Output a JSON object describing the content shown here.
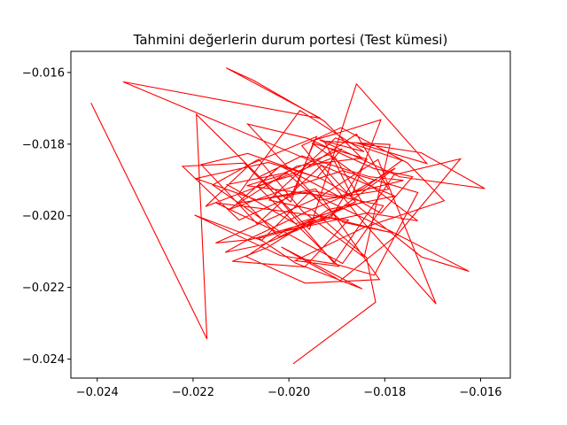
{
  "chart_data": {
    "type": "line",
    "title": "Tahmini değerlerin durum portesi (Test kümesi)",
    "xlabel": "",
    "ylabel": "",
    "xlim": [
      -0.02455,
      -0.01538
    ],
    "ylim": [
      -0.02453,
      -0.01541
    ],
    "xticks": [
      -0.024,
      -0.022,
      -0.02,
      -0.018,
      -0.016
    ],
    "xtick_labels": [
      "−0.024",
      "−0.022",
      "−0.020",
      "−0.018",
      "−0.016"
    ],
    "yticks": [
      -0.024,
      -0.022,
      -0.02,
      -0.018,
      -0.016
    ],
    "ytick_labels": [
      "−0.024",
      "−0.022",
      "−0.020",
      "−0.018",
      "−0.016"
    ],
    "grid": false,
    "line_color": "#ff0000",
    "series": [
      {
        "x": [
          -0.02413,
          -0.02171,
          -0.02193,
          -0.02051,
          -0.01996,
          -0.01947,
          -0.01808,
          -0.01869,
          -0.01926,
          -0.01789,
          -0.01843,
          -0.01972,
          -0.02063,
          -0.02159,
          -0.02017,
          -0.01861,
          -0.01932,
          -0.02066,
          -0.02183,
          -0.02086,
          -0.01941,
          -0.01889,
          -0.02013,
          -0.02129,
          -0.01986,
          -0.01847,
          -0.01904,
          -0.02046,
          -0.02174,
          -0.02081,
          -0.01942,
          -0.01995,
          -0.02104,
          -0.02222,
          -0.02093,
          -0.01957,
          -0.01859,
          -0.01712,
          -0.01858,
          -0.01724,
          -0.01591,
          -0.01769,
          -0.01936,
          -0.01843,
          -0.01977,
          -0.02106,
          -0.02021,
          -0.01863,
          -0.01723,
          -0.01624,
          -0.01786,
          -0.01957,
          -0.02057,
          -0.02197,
          -0.02018,
          -0.01902,
          -0.01822,
          -0.01731,
          -0.01888,
          -0.02014,
          -0.02126,
          -0.01983,
          -0.01848,
          -0.01927,
          -0.02074,
          -0.02131,
          -0.01934,
          -0.02346,
          -0.01779,
          -0.01916,
          -0.02046,
          -0.02118,
          -0.01967,
          -0.01876,
          -0.02043,
          -0.02152,
          -0.02022,
          -0.01836,
          -0.01731,
          -0.01874,
          -0.01952,
          -0.01837,
          -0.01913,
          -0.02063,
          -0.01986,
          -0.01847,
          -0.02016,
          -0.01893,
          -0.01773,
          -0.01642,
          -0.01781,
          -0.01906,
          -0.02061,
          -0.01973,
          -0.01832,
          -0.01761,
          -0.01905,
          -0.02088,
          -0.02003,
          -0.01887,
          -0.01783,
          -0.01921,
          -0.02079,
          -0.02153,
          -0.01934,
          -0.01814,
          -0.01693,
          -0.01846,
          -0.01973,
          -0.01891,
          -0.01753,
          -0.01676,
          -0.01842,
          -0.01987,
          -0.01896,
          -0.02066,
          -0.01982,
          -0.01859,
          -0.01792,
          -0.01938,
          -0.02086,
          -0.01961,
          -0.01823,
          -0.01742,
          -0.01808,
          -0.01933,
          -0.02043,
          -0.02194,
          -0.02067,
          -0.01944,
          -0.01811,
          -0.01966,
          -0.02089,
          -0.02011,
          -0.01888,
          -0.01803,
          -0.01947,
          -0.02108,
          -0.02018,
          -0.01888,
          -0.01778,
          -0.01916,
          -0.02058,
          -0.02133,
          -0.02082,
          -0.01952,
          -0.01843,
          -0.01764,
          -0.01903,
          -0.02041,
          -0.01952,
          -0.01838,
          -0.01819,
          -0.01991
        ],
        "y": [
          -0.01685,
          -0.02344,
          -0.01717,
          -0.01905,
          -0.01961,
          -0.01789,
          -0.01732,
          -0.01943,
          -0.01792,
          -0.01801,
          -0.02116,
          -0.01987,
          -0.01842,
          -0.01914,
          -0.02046,
          -0.01961,
          -0.01859,
          -0.02023,
          -0.01857,
          -0.01826,
          -0.01893,
          -0.01813,
          -0.01882,
          -0.01913,
          -0.02022,
          -0.01962,
          -0.01836,
          -0.01909,
          -0.01974,
          -0.01856,
          -0.01779,
          -0.01945,
          -0.02012,
          -0.01862,
          -0.01853,
          -0.02038,
          -0.01632,
          -0.01854,
          -0.01797,
          -0.01824,
          -0.01924,
          -0.01891,
          -0.01788,
          -0.01821,
          -0.01706,
          -0.01941,
          -0.02059,
          -0.01966,
          -0.02115,
          -0.02155,
          -0.02044,
          -0.01934,
          -0.02069,
          -0.01998,
          -0.02111,
          -0.02135,
          -0.02166,
          -0.01935,
          -0.01874,
          -0.01929,
          -0.01983,
          -0.01861,
          -0.01839,
          -0.01735,
          -0.01622,
          -0.01587,
          -0.01728,
          -0.01626,
          -0.01945,
          -0.01982,
          -0.02089,
          -0.02127,
          -0.02143,
          -0.02012,
          -0.01982,
          -0.01964,
          -0.02047,
          -0.01992,
          -0.02014,
          -0.01871,
          -0.01797,
          -0.01842,
          -0.02007,
          -0.02063,
          -0.02132,
          -0.02204,
          -0.02087,
          -0.02181,
          -0.02052,
          -0.01841,
          -0.01886,
          -0.02132,
          -0.01891,
          -0.01833,
          -0.01891,
          -0.01901,
          -0.01948,
          -0.01916,
          -0.01882,
          -0.02018,
          -0.02048,
          -0.02004,
          -0.02066,
          -0.02076,
          -0.01946,
          -0.01843,
          -0.02246,
          -0.02016,
          -0.01804,
          -0.01754,
          -0.01852,
          -0.01958,
          -0.02032,
          -0.02125,
          -0.02141,
          -0.01917,
          -0.01883,
          -0.01772,
          -0.01926,
          -0.01957,
          -0.01744,
          -0.01784,
          -0.01868,
          -0.01891,
          -0.01993,
          -0.01896,
          -0.01851,
          -0.01896,
          -0.01956,
          -0.01925,
          -0.02178,
          -0.02188,
          -0.02114,
          -0.02044,
          -0.02133,
          -0.01972,
          -0.01931,
          -0.01965,
          -0.01861,
          -0.01951,
          -0.01867,
          -0.02003,
          -0.02082,
          -0.02102,
          -0.02064,
          -0.01982,
          -0.01923,
          -0.01845,
          -0.01783,
          -0.01956,
          -0.01982,
          -0.02117,
          -0.02241,
          -0.02413
        ]
      }
    ]
  }
}
